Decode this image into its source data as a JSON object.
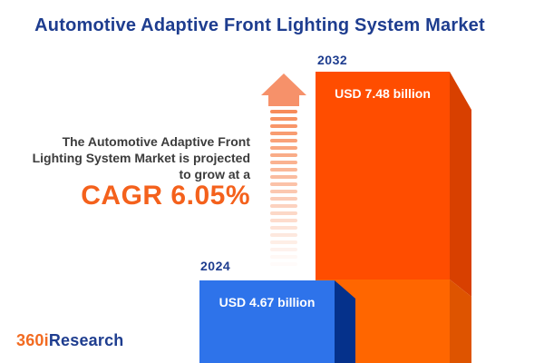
{
  "title": "Automotive Adaptive Front Lighting System Market",
  "intro": {
    "lines": [
      "The Automotive Adaptive Front",
      "Lighting System Market is projected",
      "to grow at a"
    ],
    "cagr_label": "CAGR 6.05%"
  },
  "chart_data": {
    "type": "bar",
    "title": "Automotive Adaptive Front Lighting System Market",
    "categories": [
      "2024",
      "2032"
    ],
    "values": [
      4.67,
      7.48
    ],
    "unit": "USD billion",
    "cagr_percent": 6.05,
    "bars": [
      {
        "year": "2024",
        "value": 4.67,
        "label": "USD 4.67 billion",
        "front_color": "#2E73EA",
        "side_color": "#05318B"
      },
      {
        "year": "2032",
        "value": 7.48,
        "label": "USD 7.48 billion",
        "front_color": "#FF4D00",
        "side_color": "#D84000",
        "base_front_color": "#FF6600",
        "base_side_color": "#DE5400"
      }
    ]
  },
  "growth_arrow": {
    "head_color": "#F6916A",
    "stripe_color": "#F78C5A",
    "stripe_count": 22
  },
  "logo": {
    "prefix": "360i",
    "suffix": "Research",
    "prefix_color": "#F26B21",
    "suffix_color": "#1E3D8F"
  },
  "colors": {
    "title_text": "#1E3D8F",
    "body_text": "#3C3C3C",
    "cagr_text": "#F4611C",
    "background": "#FFFFFF"
  }
}
